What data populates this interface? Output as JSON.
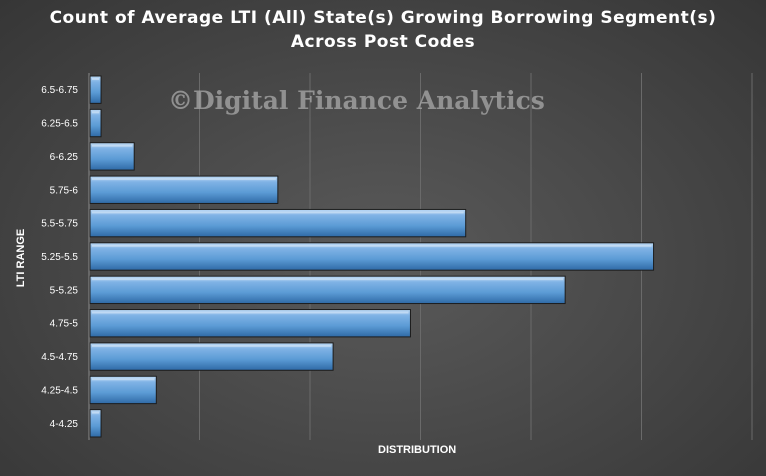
{
  "chart_data": {
    "type": "bar",
    "orientation": "horizontal",
    "title_line1": "Count of Average LTI (All) State(s) Growing Borrowing Segment(s)",
    "title_line2": "Across Post Codes",
    "watermark": "©Digital Finance Analytics",
    "xlabel": "DISTRIBUTION",
    "ylabel": "LTI RANGE",
    "categories": [
      "4-4.25",
      "4.25-4.5",
      "4.5-4.75",
      "4.75-5",
      "5-5.25",
      "5.25-5.5",
      "5.5-5.75",
      "5.75-6",
      "6-6.25",
      "6.25-6.5",
      "6.5-6.75"
    ],
    "values": [
      1,
      6,
      22,
      29,
      43,
      51,
      34,
      17,
      4,
      1,
      1
    ],
    "xlim": [
      0,
      60
    ],
    "grid": "vertical",
    "bar_color": "#5b9bd5"
  }
}
